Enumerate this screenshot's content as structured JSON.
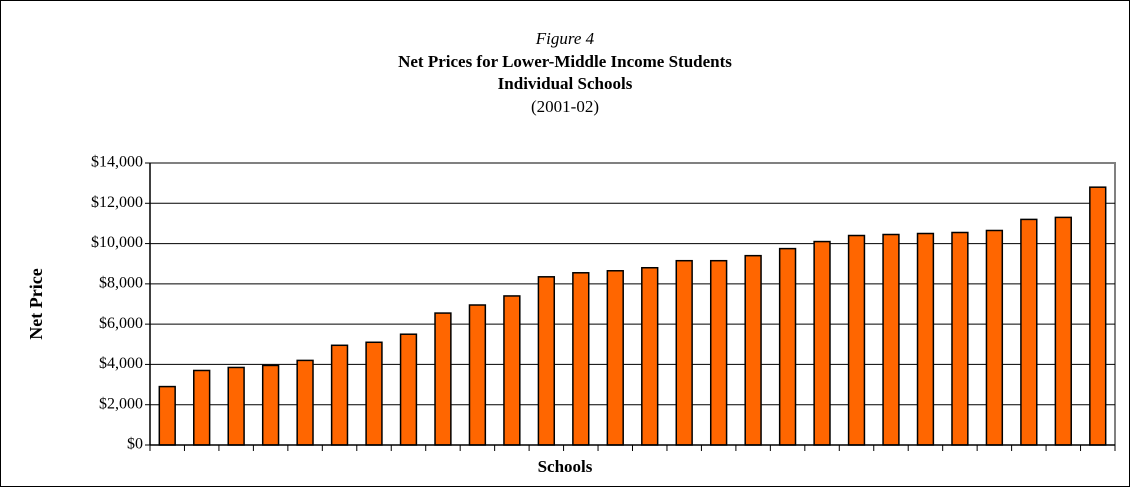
{
  "chart_data": {
    "type": "bar",
    "figure_label": "Figure 4",
    "title": "Net Prices for Lower-Middle Income Students",
    "subtitle": "Individual Schools",
    "period": "(2001-02)",
    "x_label": "Schools",
    "y_label": "Net Price",
    "categories": [
      null,
      null,
      null,
      null,
      null,
      null,
      null,
      null,
      null,
      null,
      null,
      null,
      null,
      null,
      null,
      null,
      null,
      null,
      null,
      null,
      null,
      null,
      null,
      null,
      null,
      null,
      null,
      null
    ],
    "values": [
      2900,
      3700,
      3850,
      3950,
      4200,
      4950,
      5100,
      5500,
      6550,
      6950,
      7400,
      8350,
      8550,
      8650,
      8800,
      9150,
      9150,
      9400,
      9750,
      10100,
      10400,
      10450,
      10500,
      10550,
      10650,
      11200,
      11300,
      12800
    ],
    "color": "#ff6600",
    "ylim": [
      0,
      14000
    ],
    "yticks": [
      {
        "value": 0,
        "label": "$0"
      },
      {
        "value": 2000,
        "label": "$2,000"
      },
      {
        "value": 4000,
        "label": "$4,000"
      },
      {
        "value": 6000,
        "label": "$6,000"
      },
      {
        "value": 8000,
        "label": "$8,000"
      },
      {
        "value": 10000,
        "label": "$10,000"
      },
      {
        "value": 12000,
        "label": "$12,000"
      },
      {
        "value": 14000,
        "label": "$14,000"
      }
    ],
    "grid": true
  }
}
